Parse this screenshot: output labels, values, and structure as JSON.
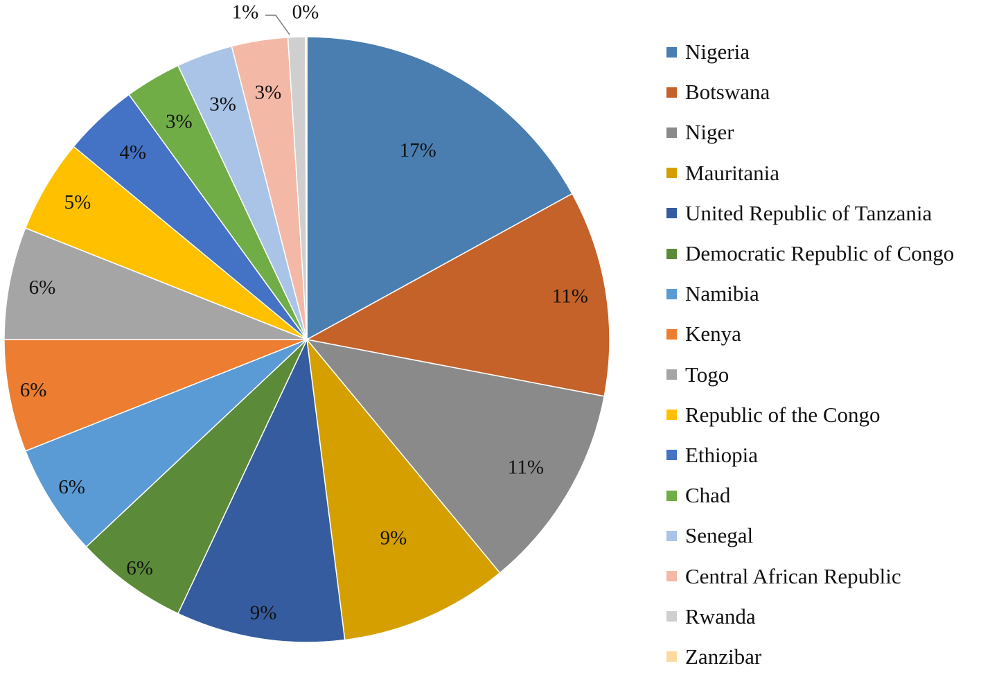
{
  "chart_data": {
    "type": "pie",
    "title": "",
    "legend_position": "right",
    "slices": [
      {
        "name": "Nigeria",
        "value": 17,
        "label": "17%",
        "color": "#4a7eb0"
      },
      {
        "name": "Botswana",
        "value": 11,
        "label": "11%",
        "color": "#c5622a"
      },
      {
        "name": "Niger",
        "value": 11,
        "label": "11%",
        "color": "#8a8a8a"
      },
      {
        "name": "Mauritania",
        "value": 9,
        "label": "9%",
        "color": "#d59f00"
      },
      {
        "name": "United Republic of Tanzania",
        "value": 9,
        "label": "9%",
        "color": "#355c9e"
      },
      {
        "name": "Democratic Republic of Congo",
        "value": 6,
        "label": "6%",
        "color": "#5b8a38"
      },
      {
        "name": "Namibia",
        "value": 6,
        "label": "6%",
        "color": "#5b9bd5"
      },
      {
        "name": "Kenya",
        "value": 6,
        "label": "6%",
        "color": "#ed7d31"
      },
      {
        "name": "Togo",
        "value": 6,
        "label": "6%",
        "color": "#a5a5a5"
      },
      {
        "name": "Republic of the Congo",
        "value": 5,
        "label": "5%",
        "color": "#ffc000"
      },
      {
        "name": "Ethiopia",
        "value": 4,
        "label": "4%",
        "color": "#4472c4"
      },
      {
        "name": "Chad",
        "value": 3,
        "label": "3%",
        "color": "#70ad47"
      },
      {
        "name": "Senegal",
        "value": 3,
        "label": "3%",
        "color": "#a9c4e6"
      },
      {
        "name": "Central African Republic",
        "value": 3,
        "label": "3%",
        "color": "#f4b9a6"
      },
      {
        "name": "Rwanda",
        "value": 1,
        "label": "1%",
        "color": "#cfcfcf"
      },
      {
        "name": "Zanzibar",
        "value": 0,
        "label": "0%",
        "color": "#fcd9a0"
      }
    ]
  }
}
